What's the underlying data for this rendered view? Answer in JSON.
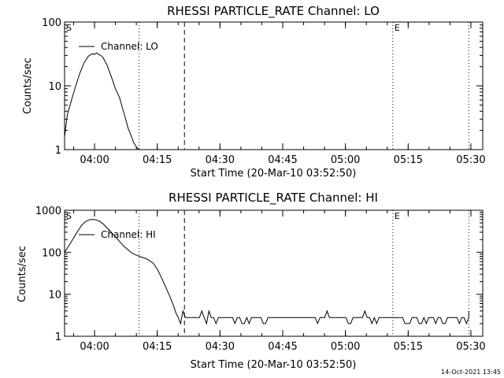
{
  "footer": {
    "timestamp": "14-Oct-2021 13:45"
  },
  "chart_data": [
    {
      "type": "line",
      "title": "RHESSI PARTICLE_RATE Channel: LO",
      "xlabel": "Start Time (20-Mar-10 03:52:50)",
      "ylabel": "Counts/sec",
      "yscale": "log",
      "ylim": [
        1,
        100
      ],
      "xlim_minutes_after_start": [
        0,
        100
      ],
      "x_ticks": [
        "04:00",
        "04:15",
        "04:30",
        "04:45",
        "05:00",
        "05:15",
        "05:30"
      ],
      "y_ticks": [
        "1",
        "10",
        "100"
      ],
      "markers": [
        {
          "label": "S",
          "time": "03:52:50",
          "style": "dotted"
        },
        {
          "label": "",
          "time": "04:10:40",
          "style": "dotted"
        },
        {
          "label": "",
          "time": "04:21:30",
          "style": "dashed"
        },
        {
          "label": "E",
          "time": "05:11:20",
          "style": "dotted"
        },
        {
          "label": "",
          "time": "05:29:30",
          "style": "dotted"
        }
      ],
      "legend": {
        "position": "top-left",
        "entries": [
          "Channel: LO"
        ]
      },
      "series": [
        {
          "name": "Channel: LO",
          "times": [
            "03:52:50",
            "03:53:30",
            "03:54:30",
            "03:55:30",
            "03:56:30",
            "03:57:30",
            "03:58:30",
            "03:59:30",
            "04:00:00",
            "04:00:30",
            "04:01:00",
            "04:01:30",
            "04:02:00",
            "04:03:00",
            "04:04:00",
            "04:05:00",
            "04:06:00",
            "04:06:40",
            "04:07:20",
            "04:08:00",
            "04:08:40",
            "04:09:20",
            "04:10:00",
            "04:10:40"
          ],
          "values": [
            1.6,
            3.5,
            6,
            10,
            16,
            23,
            29,
            32,
            31,
            33,
            31,
            30,
            28,
            21,
            14,
            9,
            6.5,
            4.5,
            3.2,
            2.2,
            1.7,
            1.3,
            1.1,
            1.0
          ]
        }
      ]
    },
    {
      "type": "line",
      "title": "RHESSI PARTICLE_RATE Channel: HI",
      "xlabel": "Start Time (20-Mar-10 03:52:50)",
      "ylabel": "Counts/sec",
      "yscale": "log",
      "ylim": [
        1,
        1000
      ],
      "xlim_minutes_after_start": [
        0,
        100
      ],
      "x_ticks": [
        "04:00",
        "04:15",
        "04:30",
        "04:45",
        "05:00",
        "05:15",
        "05:30"
      ],
      "y_ticks": [
        "1",
        "10",
        "100",
        "1000"
      ],
      "markers": [
        {
          "label": "S",
          "time": "03:52:50",
          "style": "dotted"
        },
        {
          "label": "",
          "time": "04:10:40",
          "style": "dotted"
        },
        {
          "label": "",
          "time": "04:21:30",
          "style": "dashed"
        },
        {
          "label": "E",
          "time": "05:11:20",
          "style": "dotted"
        },
        {
          "label": "",
          "time": "05:29:30",
          "style": "dotted"
        }
      ],
      "legend": {
        "position": "top-left",
        "entries": [
          "Channel: HI"
        ]
      },
      "series": [
        {
          "name": "Channel: HI",
          "times": [
            "03:52:50",
            "03:54:00",
            "03:55:00",
            "03:56:00",
            "03:57:00",
            "03:58:00",
            "03:59:00",
            "04:00:00",
            "04:01:00",
            "04:02:00",
            "04:03:00",
            "04:04:00",
            "04:05:00",
            "04:06:00",
            "04:07:00",
            "04:08:00",
            "04:09:00",
            "04:10:00",
            "04:11:00",
            "04:12:00",
            "04:13:00",
            "04:14:00",
            "04:15:00",
            "04:16:00",
            "04:17:00",
            "04:18:00",
            "04:19:00",
            "04:19:30",
            "04:20:00"
          ],
          "values": [
            100,
            150,
            220,
            320,
            450,
            550,
            600,
            600,
            560,
            480,
            380,
            300,
            230,
            180,
            140,
            115,
            95,
            85,
            78,
            72,
            65,
            55,
            40,
            25,
            15,
            9,
            5,
            3.5,
            2.8
          ],
          "baseline": {
            "from": "04:20:00",
            "to": "05:29:30",
            "value": 2.8,
            "fluctuates_between": [
              2.0,
              4.0
            ]
          }
        }
      ]
    }
  ]
}
